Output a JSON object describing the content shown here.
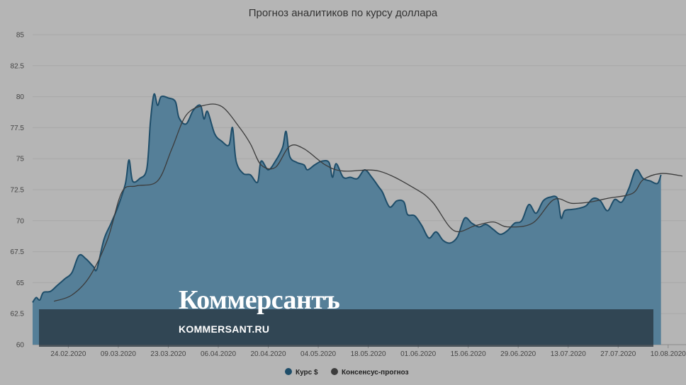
{
  "brand": {
    "logo_text": "Коммерсантъ",
    "url_text": "KOMMERSANT.RU"
  },
  "colors": {
    "background": "#b5b5b5",
    "area_fill": "#557f98",
    "area_stroke": "#1e4d69",
    "consensus_line": "#3c3c3c",
    "grid": "#a8a8a8"
  },
  "chart_data": {
    "type": "area",
    "title": "Прогноз аналитиков по курсу доллара",
    "xlabel": "",
    "ylabel": "",
    "ylim": [
      60,
      85
    ],
    "y_ticks": [
      "60",
      "62.5",
      "65",
      "67.5",
      "70",
      "72.5",
      "75",
      "77.5",
      "80",
      "82.5",
      "85"
    ],
    "x_ticks": [
      "24.02.2020",
      "09.03.2020",
      "23.03.2020",
      "06.04.2020",
      "20.04.2020",
      "04.05.2020",
      "18.05.2020",
      "01.06.2020",
      "15.06.2020",
      "29.06.2020",
      "13.07.2020",
      "27.07.2020",
      "10.08.2020"
    ],
    "x_range": [
      "2020-02-14",
      "2020-08-15"
    ],
    "grid": true,
    "legend_position": "bottom",
    "series": [
      {
        "name": "Курс $",
        "style": "area",
        "points": [
          [
            "2020-02-14",
            63.4
          ],
          [
            "2020-02-15",
            63.8
          ],
          [
            "2020-02-16",
            63.6
          ],
          [
            "2020-02-17",
            64.2
          ],
          [
            "2020-02-19",
            64.3
          ],
          [
            "2020-02-21",
            64.8
          ],
          [
            "2020-02-23",
            65.3
          ],
          [
            "2020-02-25",
            65.8
          ],
          [
            "2020-02-27",
            67.2
          ],
          [
            "2020-02-29",
            66.9
          ],
          [
            "2020-03-02",
            66.3
          ],
          [
            "2020-03-03",
            66.1
          ],
          [
            "2020-03-05",
            68.5
          ],
          [
            "2020-03-07",
            69.8
          ],
          [
            "2020-03-09",
            71.2
          ],
          [
            "2020-03-11",
            73.0
          ],
          [
            "2020-03-12",
            74.9
          ],
          [
            "2020-03-13",
            73.2
          ],
          [
            "2020-03-15",
            73.4
          ],
          [
            "2020-03-17",
            74.2
          ],
          [
            "2020-03-18",
            78.0
          ],
          [
            "2020-03-19",
            80.2
          ],
          [
            "2020-03-20",
            79.3
          ],
          [
            "2020-03-21",
            80.0
          ],
          [
            "2020-03-23",
            79.9
          ],
          [
            "2020-03-25",
            79.6
          ],
          [
            "2020-03-26",
            78.3
          ],
          [
            "2020-03-28",
            77.8
          ],
          [
            "2020-03-30",
            78.9
          ],
          [
            "2020-04-01",
            79.3
          ],
          [
            "2020-04-02",
            78.2
          ],
          [
            "2020-04-03",
            78.8
          ],
          [
            "2020-04-05",
            77.0
          ],
          [
            "2020-04-07",
            76.4
          ],
          [
            "2020-04-09",
            76.1
          ],
          [
            "2020-04-10",
            77.5
          ],
          [
            "2020-04-11",
            74.8
          ],
          [
            "2020-04-13",
            73.8
          ],
          [
            "2020-04-15",
            73.7
          ],
          [
            "2020-04-17",
            73.1
          ],
          [
            "2020-04-18",
            74.8
          ],
          [
            "2020-04-20",
            74.1
          ],
          [
            "2020-04-22",
            74.8
          ],
          [
            "2020-04-24",
            75.9
          ],
          [
            "2020-04-25",
            77.2
          ],
          [
            "2020-04-26",
            75.2
          ],
          [
            "2020-04-28",
            74.7
          ],
          [
            "2020-04-30",
            74.5
          ],
          [
            "2020-05-01",
            74.1
          ],
          [
            "2020-05-03",
            74.5
          ],
          [
            "2020-05-05",
            74.8
          ],
          [
            "2020-05-07",
            74.7
          ],
          [
            "2020-05-08",
            73.5
          ],
          [
            "2020-05-09",
            74.6
          ],
          [
            "2020-05-11",
            73.5
          ],
          [
            "2020-05-13",
            73.5
          ],
          [
            "2020-05-15",
            73.4
          ],
          [
            "2020-05-17",
            74.1
          ],
          [
            "2020-05-19",
            73.5
          ],
          [
            "2020-05-21",
            72.7
          ],
          [
            "2020-05-22",
            72.3
          ],
          [
            "2020-05-24",
            71.1
          ],
          [
            "2020-05-26",
            71.6
          ],
          [
            "2020-05-28",
            71.5
          ],
          [
            "2020-05-29",
            70.5
          ],
          [
            "2020-05-31",
            70.4
          ],
          [
            "2020-06-02",
            69.6
          ],
          [
            "2020-06-04",
            68.6
          ],
          [
            "2020-06-06",
            69.1
          ],
          [
            "2020-06-08",
            68.4
          ],
          [
            "2020-06-10",
            68.2
          ],
          [
            "2020-06-12",
            68.7
          ],
          [
            "2020-06-14",
            70.2
          ],
          [
            "2020-06-16",
            69.8
          ],
          [
            "2020-06-18",
            69.5
          ],
          [
            "2020-06-20",
            69.7
          ],
          [
            "2020-06-22",
            69.3
          ],
          [
            "2020-06-24",
            68.9
          ],
          [
            "2020-06-26",
            69.2
          ],
          [
            "2020-06-28",
            69.8
          ],
          [
            "2020-06-30",
            70.0
          ],
          [
            "2020-07-02",
            71.3
          ],
          [
            "2020-07-04",
            70.6
          ],
          [
            "2020-07-06",
            71.6
          ],
          [
            "2020-07-08",
            71.9
          ],
          [
            "2020-07-10",
            71.8
          ],
          [
            "2020-07-11",
            70.2
          ],
          [
            "2020-07-12",
            70.8
          ],
          [
            "2020-07-14",
            70.9
          ],
          [
            "2020-07-16",
            71.0
          ],
          [
            "2020-07-18",
            71.2
          ],
          [
            "2020-07-20",
            71.8
          ],
          [
            "2020-07-22",
            71.6
          ],
          [
            "2020-07-24",
            70.8
          ],
          [
            "2020-07-26",
            71.7
          ],
          [
            "2020-07-28",
            71.5
          ],
          [
            "2020-07-30",
            72.6
          ],
          [
            "2020-08-01",
            74.1
          ],
          [
            "2020-08-03",
            73.4
          ],
          [
            "2020-08-05",
            73.2
          ],
          [
            "2020-08-07",
            73.0
          ],
          [
            "2020-08-08",
            73.7
          ]
        ]
      },
      {
        "name": "Консенсус-прогноз",
        "style": "line",
        "points": [
          [
            "2020-02-20",
            63.5
          ],
          [
            "2020-02-25",
            64.0
          ],
          [
            "2020-03-01",
            65.5
          ],
          [
            "2020-03-06",
            68.5
          ],
          [
            "2020-03-10",
            72.3
          ],
          [
            "2020-03-14",
            72.8
          ],
          [
            "2020-03-20",
            73.2
          ],
          [
            "2020-03-24",
            75.8
          ],
          [
            "2020-03-28",
            78.5
          ],
          [
            "2020-04-02",
            79.3
          ],
          [
            "2020-04-07",
            79.2
          ],
          [
            "2020-04-12",
            77.5
          ],
          [
            "2020-04-15",
            76.2
          ],
          [
            "2020-04-18",
            74.5
          ],
          [
            "2020-04-22",
            74.3
          ],
          [
            "2020-04-26",
            76.0
          ],
          [
            "2020-04-30",
            75.8
          ],
          [
            "2020-05-06",
            74.5
          ],
          [
            "2020-05-11",
            74.0
          ],
          [
            "2020-05-21",
            74.0
          ],
          [
            "2020-05-31",
            72.6
          ],
          [
            "2020-06-05",
            71.5
          ],
          [
            "2020-06-11",
            69.2
          ],
          [
            "2020-06-17",
            69.6
          ],
          [
            "2020-06-22",
            69.9
          ],
          [
            "2020-06-26",
            69.5
          ],
          [
            "2020-07-03",
            69.8
          ],
          [
            "2020-07-09",
            71.7
          ],
          [
            "2020-07-14",
            71.4
          ],
          [
            "2020-07-19",
            71.5
          ],
          [
            "2020-07-24",
            71.8
          ],
          [
            "2020-07-31",
            72.2
          ],
          [
            "2020-08-03",
            73.3
          ],
          [
            "2020-08-08",
            73.8
          ],
          [
            "2020-08-14",
            73.6
          ]
        ]
      }
    ]
  }
}
